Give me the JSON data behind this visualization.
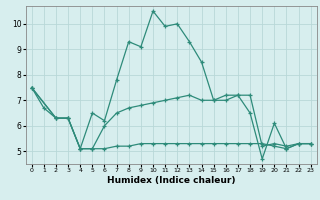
{
  "xlabel": "Humidex (Indice chaleur)",
  "bg_color": "#d7eeee",
  "grid_color": "#b8d8d8",
  "line_color": "#2e8b7a",
  "xlim": [
    -0.5,
    23.5
  ],
  "ylim": [
    4.5,
    10.7
  ],
  "xticks": [
    0,
    1,
    2,
    3,
    4,
    5,
    6,
    7,
    8,
    9,
    10,
    11,
    12,
    13,
    14,
    15,
    16,
    17,
    18,
    19,
    20,
    21,
    22,
    23
  ],
  "yticks": [
    5,
    6,
    7,
    8,
    9,
    10
  ],
  "lines": [
    {
      "x": [
        0,
        1,
        2,
        3,
        4,
        5,
        6,
        7,
        8,
        9,
        10,
        11,
        12,
        13,
        14,
        15,
        16,
        17,
        18,
        19,
        20,
        21,
        22,
        23
      ],
      "y": [
        7.5,
        6.7,
        6.3,
        6.3,
        5.1,
        6.5,
        6.2,
        7.8,
        9.3,
        9.1,
        10.5,
        9.9,
        10.0,
        9.3,
        8.5,
        7.0,
        7.0,
        7.2,
        6.5,
        4.7,
        6.1,
        5.1,
        5.3,
        5.3
      ]
    },
    {
      "x": [
        0,
        2,
        3,
        4,
        5,
        6,
        7,
        8,
        9,
        10,
        11,
        12,
        13,
        14,
        15,
        16,
        17,
        18,
        19,
        20,
        21,
        22,
        23
      ],
      "y": [
        7.5,
        6.3,
        6.3,
        5.1,
        5.1,
        6.0,
        6.5,
        6.7,
        6.8,
        6.9,
        7.0,
        7.1,
        7.2,
        7.0,
        7.0,
        7.2,
        7.2,
        7.2,
        5.2,
        5.3,
        5.2,
        5.3,
        5.3
      ]
    },
    {
      "x": [
        0,
        2,
        3,
        4,
        5,
        6,
        7,
        8,
        9,
        10,
        11,
        12,
        13,
        14,
        15,
        16,
        17,
        18,
        19,
        20,
        21,
        22,
        23
      ],
      "y": [
        7.5,
        6.3,
        6.3,
        5.1,
        5.1,
        5.1,
        5.2,
        5.2,
        5.3,
        5.3,
        5.3,
        5.3,
        5.3,
        5.3,
        5.3,
        5.3,
        5.3,
        5.3,
        5.3,
        5.2,
        5.1,
        5.3,
        5.3
      ]
    }
  ]
}
